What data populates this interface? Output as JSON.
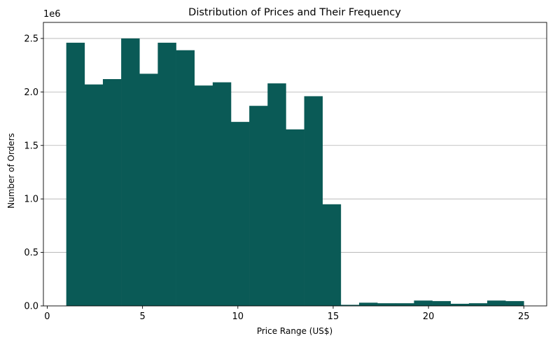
{
  "chart_data": {
    "type": "bar",
    "title": "Distribution of Prices and Their Frequency",
    "xlabel": "Price Range (US$)",
    "ylabel": "Number of Orders",
    "y_offset_label": "1e6",
    "xlim": [
      -0.2,
      26.2
    ],
    "ylim": [
      0,
      2650000
    ],
    "grid": "y",
    "bar_color": "#0a5a56",
    "bins": {
      "start": 1,
      "width": 0.96,
      "count": 25
    },
    "values": [
      2460000,
      2070000,
      2120000,
      2500000,
      2170000,
      2460000,
      2390000,
      2060000,
      2090000,
      1720000,
      1870000,
      2080000,
      1650000,
      1960000,
      950000,
      10000,
      30000,
      25000,
      25000,
      50000,
      45000,
      20000,
      25000,
      50000,
      45000
    ],
    "x_ticks": [
      0,
      5,
      10,
      15,
      20,
      25
    ],
    "x_tick_labels": [
      "0",
      "5",
      "10",
      "15",
      "20",
      "25"
    ],
    "y_ticks": [
      0,
      500000,
      1000000,
      1500000,
      2000000,
      2500000
    ],
    "y_tick_labels": [
      "0.0",
      "0.5",
      "1.0",
      "1.5",
      "2.0",
      "2.5"
    ]
  }
}
